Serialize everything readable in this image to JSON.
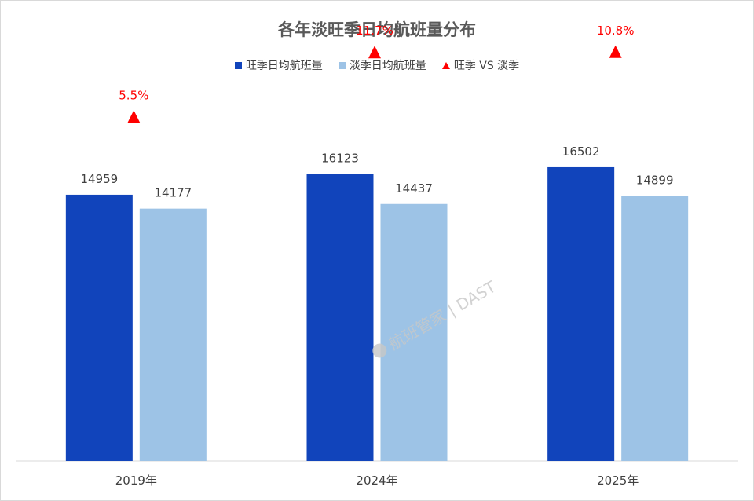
{
  "chart_data": {
    "type": "bar",
    "title": "各年淡旺季日均航班量分布",
    "categories": [
      "2019年",
      "2024年",
      "2025年"
    ],
    "series": [
      {
        "name": "旺季日均航班量",
        "values": [
          14959,
          16123,
          16502
        ],
        "color": "#1144bb"
      },
      {
        "name": "淡季日均航班量",
        "values": [
          14177,
          14437,
          14899
        ],
        "color": "#9dc3e6"
      }
    ],
    "comparison": {
      "name": "旺季 VS 淡季",
      "labels": [
        "5.5%",
        "11.7%",
        "10.8%"
      ],
      "values": [
        5.5,
        11.7,
        10.8
      ],
      "color": "#ff0000"
    },
    "ylim": [
      0,
      21000
    ],
    "grid": false,
    "legend_position": "top-center"
  },
  "watermark": "航班管家 | DAST"
}
